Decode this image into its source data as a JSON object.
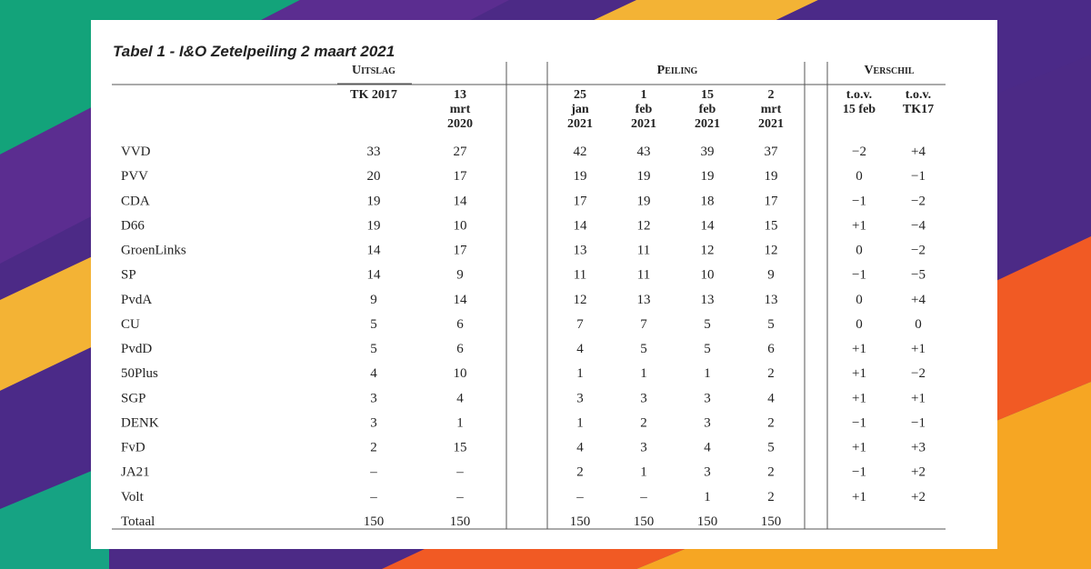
{
  "title": "Tabel 1 - I&O Zetelpeiling 2 maart  2021",
  "groups": [
    "Uitslag",
    "Peiling",
    "Verschil"
  ],
  "columns": [
    [
      "TK 2017"
    ],
    [
      "13",
      "mrt",
      "2020"
    ],
    [
      "25",
      "jan",
      "2021"
    ],
    [
      "1",
      "feb",
      "2021"
    ],
    [
      "15",
      "feb",
      "2021"
    ],
    [
      "2",
      "mrt",
      "2021"
    ],
    [
      "t.o.v.",
      "15 feb"
    ],
    [
      "t.o.v.",
      "TK17"
    ]
  ],
  "rows": [
    [
      "VVD",
      "33",
      "27",
      "42",
      "43",
      "39",
      "37",
      "−2",
      "+4"
    ],
    [
      "PVV",
      "20",
      "17",
      "19",
      "19",
      "19",
      "19",
      "0",
      "−1"
    ],
    [
      "CDA",
      "19",
      "14",
      "17",
      "19",
      "18",
      "17",
      "−1",
      "−2"
    ],
    [
      "D66",
      "19",
      "10",
      "14",
      "12",
      "14",
      "15",
      "+1",
      "−4"
    ],
    [
      "GroenLinks",
      "14",
      "17",
      "13",
      "11",
      "12",
      "12",
      "0",
      "−2"
    ],
    [
      "SP",
      "14",
      "9",
      "11",
      "11",
      "10",
      "9",
      "−1",
      "−5"
    ],
    [
      "PvdA",
      "9",
      "14",
      "12",
      "13",
      "13",
      "13",
      "0",
      "+4"
    ],
    [
      "CU",
      "5",
      "6",
      "7",
      "7",
      "5",
      "5",
      "0",
      "0"
    ],
    [
      "PvdD",
      "5",
      "6",
      "4",
      "5",
      "5",
      "6",
      "+1",
      "+1"
    ],
    [
      "50Plus",
      "4",
      "10",
      "1",
      "1",
      "1",
      "2",
      "+1",
      "−2"
    ],
    [
      "SGP",
      "3",
      "4",
      "3",
      "3",
      "3",
      "4",
      "+1",
      "+1"
    ],
    [
      "DENK",
      "3",
      "1",
      "1",
      "2",
      "3",
      "2",
      "−1",
      "−1"
    ],
    [
      "FvD",
      "2",
      "15",
      "4",
      "3",
      "4",
      "5",
      "+1",
      "+3"
    ],
    [
      "JA21",
      "–",
      "–",
      "2",
      "1",
      "3",
      "2",
      "−1",
      "+2"
    ],
    [
      "Volt",
      "–",
      "–",
      "–",
      "–",
      "1",
      "2",
      "+1",
      "+2"
    ],
    [
      "Totaal",
      "150",
      "150",
      "150",
      "150",
      "150",
      "150"
    ]
  ]
}
